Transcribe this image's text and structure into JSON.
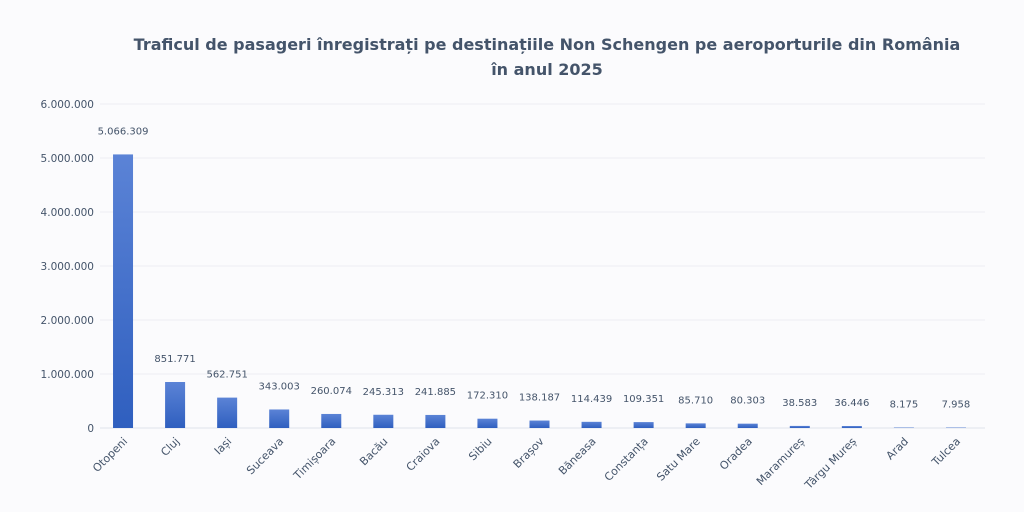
{
  "chart_data": {
    "type": "bar",
    "title": [
      "Traficul de pasageri înregistrați pe destinațiile Non Schengen pe aeroporturile din România",
      "în anul 2025"
    ],
    "xlabel": "",
    "ylabel": "",
    "ylim": [
      0,
      6000000
    ],
    "yticks": [
      0,
      1000000,
      2000000,
      3000000,
      4000000,
      5000000,
      6000000
    ],
    "ytick_labels": [
      "0",
      "1.000.000",
      "2.000.000",
      "3.000.000",
      "4.000.000",
      "5.000.000",
      "6.000.000"
    ],
    "grid": true,
    "legend": "none",
    "bar_color": "#3a66c4",
    "categories": [
      "Otopeni",
      "Cluj",
      "Iași",
      "Suceava",
      "Timișoara",
      "Bacău",
      "Craiova",
      "Sibiu",
      "Brașov",
      "Băneasa",
      "Constanța",
      "Satu Mare",
      "Oradea",
      "Maramureș",
      "Târgu Mureș",
      "Arad",
      "Tulcea"
    ],
    "values": [
      5066309,
      851771,
      562751,
      343003,
      260074,
      245313,
      241885,
      172310,
      138187,
      114439,
      109351,
      85710,
      80303,
      38583,
      36446,
      8175,
      7958
    ],
    "data_labels": [
      "5.066.309",
      "851.771",
      "562.751",
      "343.003",
      "260.074",
      "245.313",
      "241.885",
      "172.310",
      "138.187",
      "114.439",
      "109.351",
      "85.710",
      "80.303",
      "38.583",
      "36.446",
      "8.175",
      "7.958"
    ]
  }
}
